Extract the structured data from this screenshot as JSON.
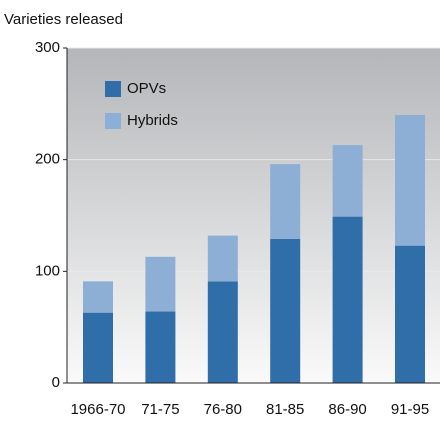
{
  "chart_data": {
    "type": "stacked_bar",
    "y_label": "Varieties released",
    "categories": [
      "1966-70",
      "71-75",
      "76-80",
      "81-85",
      "86-90",
      "91-95"
    ],
    "series": [
      {
        "name": "OPVs",
        "color": "#2f6ea8",
        "values": [
          63,
          64,
          91,
          129,
          149,
          123
        ]
      },
      {
        "name": "Hybrids",
        "color": "#8eafd5",
        "values": [
          28,
          49,
          41,
          67,
          64,
          117
        ]
      }
    ],
    "ylim": [
      0,
      300
    ],
    "yticks": [
      0,
      100,
      200,
      300
    ],
    "grid": true
  }
}
